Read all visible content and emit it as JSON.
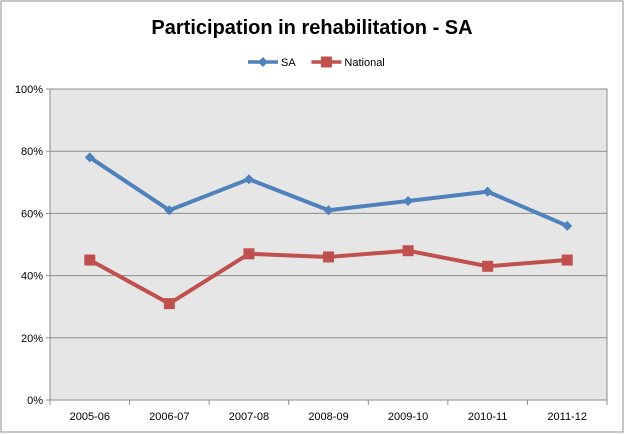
{
  "chart_data": {
    "type": "line",
    "title": "Participation in rehabilitation - SA",
    "xlabel": "",
    "ylabel": "",
    "categories": [
      "2005-06",
      "2006-07",
      "2007-08",
      "2008-09",
      "2009-10",
      "2010-11",
      "2011-12"
    ],
    "y_ticks": [
      "0%",
      "20%",
      "40%",
      "60%",
      "80%",
      "100%"
    ],
    "ylim": [
      0,
      100
    ],
    "grid": true,
    "legend_position": "top-center",
    "series": [
      {
        "name": "SA",
        "color": "#4f81bd",
        "marker": "diamond",
        "values": [
          78,
          61,
          71,
          61,
          64,
          67,
          56
        ]
      },
      {
        "name": "National",
        "color": "#c0504d",
        "marker": "square",
        "values": [
          45,
          31,
          47,
          46,
          48,
          43,
          45
        ]
      }
    ]
  }
}
